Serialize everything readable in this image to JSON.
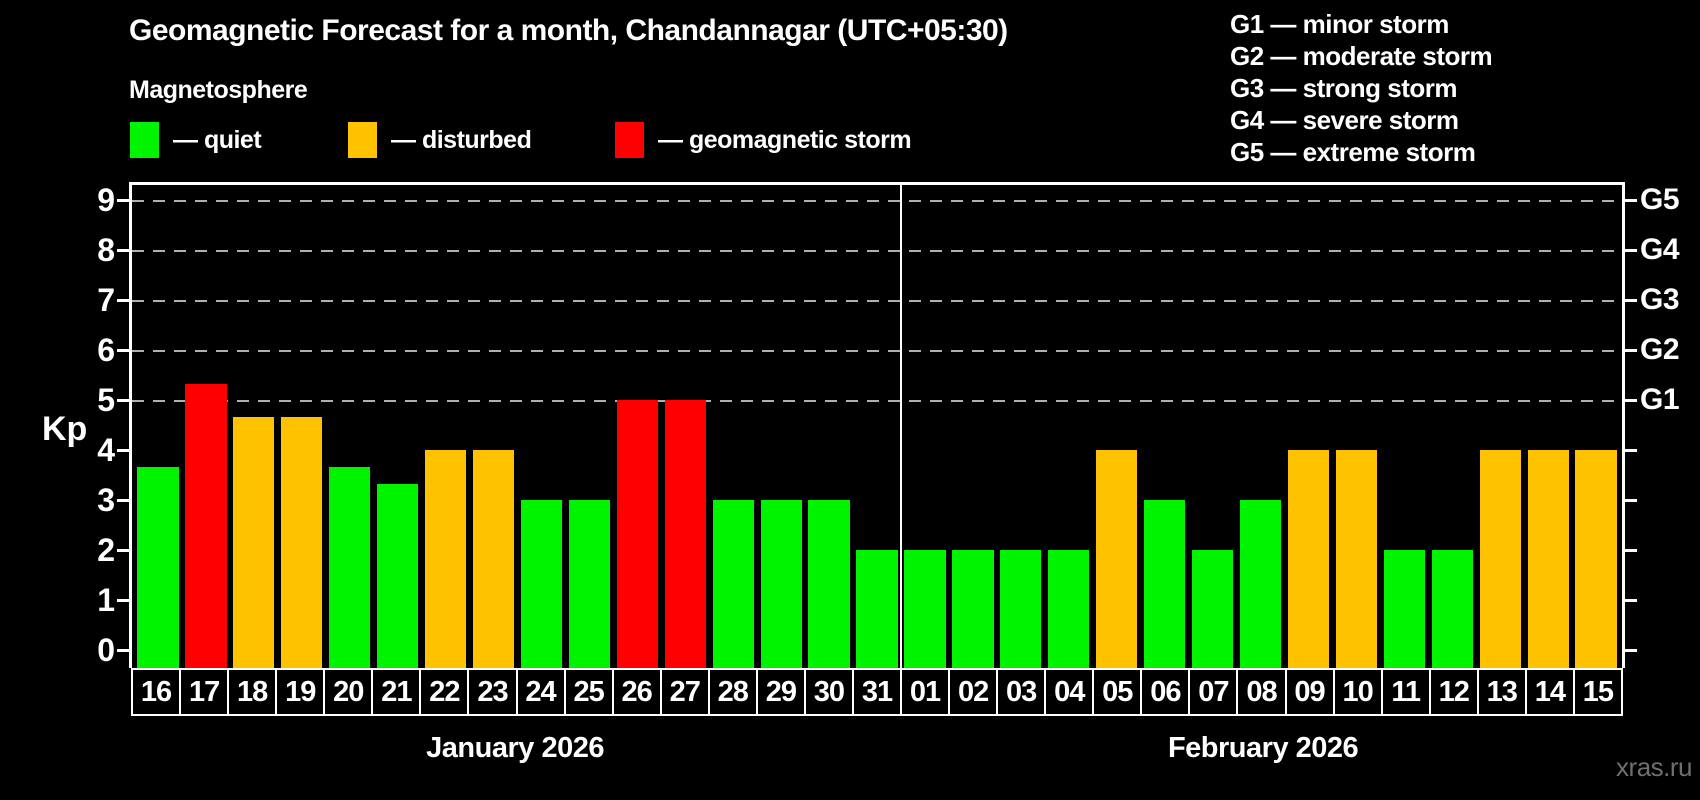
{
  "title": "Geomagnetic Forecast for a month, Chandannagar (UTC+05:30)",
  "subtitle": "Magnetosphere",
  "legend": {
    "items": [
      {
        "label": "— quiet",
        "status": "quiet"
      },
      {
        "label": "— disturbed",
        "status": "disturbed"
      },
      {
        "label": "— geomagnetic storm",
        "status": "storm"
      }
    ]
  },
  "g_legend": [
    "G1 — minor storm",
    "G2 — moderate storm",
    "G3 — strong storm",
    "G4 — severe storm",
    "G5 — extreme storm"
  ],
  "watermark": "xras.ru",
  "chart_data": {
    "type": "bar",
    "ylabel": "Kp",
    "ylim": [
      0,
      9.3
    ],
    "y_ticks": [
      0,
      1,
      2,
      3,
      4,
      5,
      6,
      7,
      8,
      9
    ],
    "gridlines_at": [
      5,
      6,
      7,
      8,
      9
    ],
    "grid": "dashed-horizontal",
    "legend_position": "top",
    "right_axis_labels": [
      {
        "kp": 5,
        "label": "G1"
      },
      {
        "kp": 6,
        "label": "G2"
      },
      {
        "kp": 7,
        "label": "G3"
      },
      {
        "kp": 8,
        "label": "G4"
      },
      {
        "kp": 9,
        "label": "G5"
      }
    ],
    "colors": {
      "quiet": "#00f400",
      "disturbed": "#ffc200",
      "storm": "#ff0000"
    },
    "months": [
      {
        "label": "January 2026",
        "days": 16
      },
      {
        "label": "February 2026",
        "days": 15
      }
    ],
    "bars": [
      {
        "day": "16",
        "kp": 3.67,
        "status": "quiet"
      },
      {
        "day": "17",
        "kp": 5.33,
        "status": "storm"
      },
      {
        "day": "18",
        "kp": 4.67,
        "status": "disturbed"
      },
      {
        "day": "19",
        "kp": 4.67,
        "status": "disturbed"
      },
      {
        "day": "20",
        "kp": 3.67,
        "status": "quiet"
      },
      {
        "day": "21",
        "kp": 3.33,
        "status": "quiet"
      },
      {
        "day": "22",
        "kp": 4,
        "status": "disturbed"
      },
      {
        "day": "23",
        "kp": 4,
        "status": "disturbed"
      },
      {
        "day": "24",
        "kp": 3,
        "status": "quiet"
      },
      {
        "day": "25",
        "kp": 3,
        "status": "quiet"
      },
      {
        "day": "26",
        "kp": 5,
        "status": "storm"
      },
      {
        "day": "27",
        "kp": 5,
        "status": "storm"
      },
      {
        "day": "28",
        "kp": 3,
        "status": "quiet"
      },
      {
        "day": "29",
        "kp": 3,
        "status": "quiet"
      },
      {
        "day": "30",
        "kp": 3,
        "status": "quiet"
      },
      {
        "day": "31",
        "kp": 2,
        "status": "quiet"
      },
      {
        "day": "01",
        "kp": 2,
        "status": "quiet"
      },
      {
        "day": "02",
        "kp": 2,
        "status": "quiet"
      },
      {
        "day": "03",
        "kp": 2,
        "status": "quiet"
      },
      {
        "day": "04",
        "kp": 2,
        "status": "quiet"
      },
      {
        "day": "05",
        "kp": 4,
        "status": "disturbed"
      },
      {
        "day": "06",
        "kp": 3,
        "status": "quiet"
      },
      {
        "day": "07",
        "kp": 2,
        "status": "quiet"
      },
      {
        "day": "08",
        "kp": 3,
        "status": "quiet"
      },
      {
        "day": "09",
        "kp": 4,
        "status": "disturbed"
      },
      {
        "day": "10",
        "kp": 4,
        "status": "disturbed"
      },
      {
        "day": "11",
        "kp": 2,
        "status": "quiet"
      },
      {
        "day": "12",
        "kp": 2,
        "status": "quiet"
      },
      {
        "day": "13",
        "kp": 4,
        "status": "disturbed"
      },
      {
        "day": "14",
        "kp": 4,
        "status": "disturbed"
      },
      {
        "day": "15",
        "kp": 4,
        "status": "disturbed"
      }
    ]
  }
}
